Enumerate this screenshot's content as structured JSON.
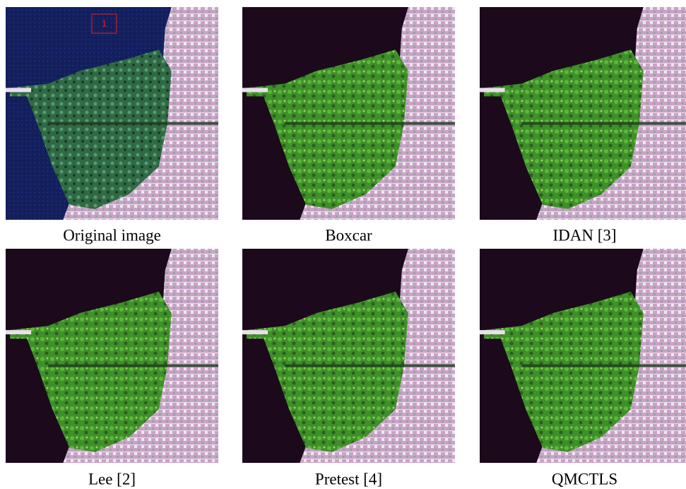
{
  "figure": {
    "panels": [
      {
        "caption": "Original image"
      },
      {
        "caption": "Boxcar"
      },
      {
        "caption": "IDAN [3]"
      },
      {
        "caption": "Lee [2]"
      },
      {
        "caption": "Pretest [4]"
      },
      {
        "caption": "QMCTLS"
      }
    ],
    "region_label": "1"
  }
}
